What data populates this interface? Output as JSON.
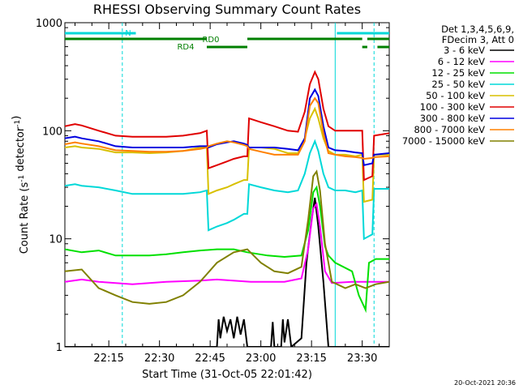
{
  "chart_data": {
    "type": "line",
    "title": "RHESSI Observing Summary Count Rates",
    "xlabel": "Start Time (31-Oct-05 22:01:42)",
    "ylabel_main": "Count Rate (s",
    "ylabel_sup1": "-1",
    "ylabel_mid": " detector",
    "ylabel_sup2": "-1",
    "ylabel_end": ")",
    "yscale": "log",
    "ylim": [
      1,
      1000
    ],
    "xlim_minutes": [
      0,
      96
    ],
    "y_ticks": [
      {
        "value": 1,
        "label": "1"
      },
      {
        "value": 10,
        "label": "10"
      },
      {
        "value": 100,
        "label": "100"
      },
      {
        "value": 1000,
        "label": "1000"
      }
    ],
    "x_ticks": [
      {
        "minute": 13,
        "label": "22:15"
      },
      {
        "minute": 28,
        "label": "22:30"
      },
      {
        "minute": 43,
        "label": "22:45"
      },
      {
        "minute": 58,
        "label": "23:00"
      },
      {
        "minute": 73,
        "label": "23:15"
      },
      {
        "minute": 88,
        "label": "23:30"
      }
    ],
    "legend_header": [
      "Det 1,3,4,5,6,9,",
      "FDecim 3, Att 0"
    ],
    "status_bars": [
      {
        "label": "N",
        "color": "#00d8d8",
        "segments": [
          [
            0,
            21
          ],
          [
            80.5,
            96
          ]
        ]
      },
      {
        "label": "RD0",
        "color": "#007f00",
        "segments": [
          [
            0,
            42
          ],
          [
            54,
            88
          ],
          [
            89.5,
            96
          ]
        ]
      },
      {
        "label": "RD4",
        "color": "#007f00",
        "segments": [
          [
            42,
            54
          ],
          [
            88,
            89.5
          ],
          [
            92.5,
            96
          ]
        ]
      }
    ],
    "night_markers_minutes": [
      17,
      91.5
    ],
    "saa_edge_minutes": [
      80
    ],
    "series": [
      {
        "name": "3 - 6 keV",
        "color": "#000000",
        "points": [
          [
            0,
            1
          ],
          [
            45,
            1
          ],
          [
            45.5,
            1.8
          ],
          [
            46,
            1.2
          ],
          [
            47,
            1.9
          ],
          [
            48,
            1.4
          ],
          [
            49,
            1.8
          ],
          [
            50,
            1.2
          ],
          [
            51,
            1.9
          ],
          [
            52,
            1.3
          ],
          [
            53,
            1.8
          ],
          [
            54,
            1
          ],
          [
            61,
            1
          ],
          [
            61.5,
            1.7
          ],
          [
            62,
            1
          ],
          [
            64,
            1
          ],
          [
            64.5,
            1.8
          ],
          [
            65,
            1.1
          ],
          [
            66,
            1.8
          ],
          [
            67,
            1
          ],
          [
            70,
            1.2
          ],
          [
            71.5,
            6
          ],
          [
            73,
            15
          ],
          [
            74,
            24
          ],
          [
            75,
            13
          ],
          [
            76.5,
            4
          ],
          [
            78,
            1
          ],
          [
            96,
            1
          ]
        ]
      },
      {
        "name": "6 - 12 keV",
        "color": "#ff00ff",
        "points": [
          [
            0,
            4
          ],
          [
            5,
            4.2
          ],
          [
            10,
            4
          ],
          [
            20,
            3.8
          ],
          [
            30,
            4
          ],
          [
            40,
            4.1
          ],
          [
            45,
            4.2
          ],
          [
            55,
            4
          ],
          [
            65,
            4
          ],
          [
            70,
            4.3
          ],
          [
            72,
            8
          ],
          [
            73.5,
            19
          ],
          [
            74.5,
            21
          ],
          [
            75.5,
            13
          ],
          [
            77,
            5
          ],
          [
            79,
            3.9
          ],
          [
            85,
            4
          ],
          [
            90,
            4
          ],
          [
            96,
            4
          ]
        ]
      },
      {
        "name": "12 - 25 keV",
        "color": "#00e000",
        "points": [
          [
            0,
            8
          ],
          [
            5,
            7.5
          ],
          [
            10,
            7.8
          ],
          [
            15,
            7
          ],
          [
            20,
            7
          ],
          [
            25,
            7
          ],
          [
            30,
            7.2
          ],
          [
            35,
            7.5
          ],
          [
            40,
            7.8
          ],
          [
            45,
            8
          ],
          [
            50,
            8
          ],
          [
            54,
            7.5
          ],
          [
            60,
            7
          ],
          [
            65,
            6.8
          ],
          [
            70,
            7
          ],
          [
            72,
            12
          ],
          [
            73.5,
            27
          ],
          [
            74.5,
            30
          ],
          [
            75.5,
            20
          ],
          [
            77,
            8.5
          ],
          [
            78,
            7
          ],
          [
            80,
            6
          ],
          [
            85,
            5
          ],
          [
            87,
            3
          ],
          [
            89,
            2.2
          ],
          [
            90,
            6
          ],
          [
            92,
            6.5
          ],
          [
            96,
            6.5
          ]
        ]
      },
      {
        "name": "25 - 50 keV",
        "color": "#00d8d8",
        "points": [
          [
            0,
            31
          ],
          [
            3,
            32
          ],
          [
            5,
            31
          ],
          [
            10,
            30
          ],
          [
            15,
            28
          ],
          [
            20,
            26
          ],
          [
            25,
            26
          ],
          [
            30,
            26
          ],
          [
            35,
            26
          ],
          [
            40,
            27
          ],
          [
            42,
            28
          ],
          [
            42.5,
            12
          ],
          [
            45,
            13
          ],
          [
            48,
            14
          ],
          [
            50,
            15
          ],
          [
            53,
            17
          ],
          [
            54,
            17
          ],
          [
            54.5,
            32
          ],
          [
            58,
            30
          ],
          [
            62,
            28
          ],
          [
            66,
            27
          ],
          [
            69,
            28
          ],
          [
            71,
            40
          ],
          [
            72.5,
            62
          ],
          [
            74,
            80
          ],
          [
            75,
            65
          ],
          [
            76.5,
            40
          ],
          [
            78,
            30
          ],
          [
            80,
            28
          ],
          [
            83,
            28
          ],
          [
            86,
            27
          ],
          [
            88,
            28
          ],
          [
            88.5,
            10
          ],
          [
            91,
            11
          ],
          [
            91.5,
            29
          ],
          [
            96,
            29
          ]
        ]
      },
      {
        "name": "50 - 100 keV",
        "color": "#d8c000",
        "points": [
          [
            0,
            70
          ],
          [
            3,
            72
          ],
          [
            5,
            70
          ],
          [
            10,
            68
          ],
          [
            15,
            63
          ],
          [
            20,
            63
          ],
          [
            25,
            62
          ],
          [
            30,
            63
          ],
          [
            35,
            65
          ],
          [
            40,
            70
          ],
          [
            42,
            72
          ],
          [
            42.5,
            26
          ],
          [
            45,
            28
          ],
          [
            48,
            30
          ],
          [
            50,
            32
          ],
          [
            53,
            35
          ],
          [
            54,
            35
          ],
          [
            54.5,
            70
          ],
          [
            58,
            70
          ],
          [
            62,
            68
          ],
          [
            66,
            62
          ],
          [
            69,
            62
          ],
          [
            71,
            85
          ],
          [
            72.5,
            130
          ],
          [
            74,
            160
          ],
          [
            75,
            130
          ],
          [
            76.5,
            85
          ],
          [
            78,
            65
          ],
          [
            80,
            60
          ],
          [
            83,
            60
          ],
          [
            86,
            58
          ],
          [
            88,
            60
          ],
          [
            88.5,
            22
          ],
          [
            91,
            23
          ],
          [
            91.5,
            60
          ],
          [
            96,
            60
          ]
        ]
      },
      {
        "name": "100 - 300 keV",
        "color": "#e00000",
        "points": [
          [
            0,
            110
          ],
          [
            3,
            115
          ],
          [
            5,
            112
          ],
          [
            10,
            100
          ],
          [
            15,
            90
          ],
          [
            20,
            88
          ],
          [
            25,
            88
          ],
          [
            30,
            88
          ],
          [
            35,
            90
          ],
          [
            40,
            95
          ],
          [
            42,
            100
          ],
          [
            42.5,
            45
          ],
          [
            45,
            48
          ],
          [
            48,
            52
          ],
          [
            50,
            55
          ],
          [
            53,
            58
          ],
          [
            54,
            58
          ],
          [
            54.5,
            130
          ],
          [
            58,
            120
          ],
          [
            62,
            110
          ],
          [
            66,
            100
          ],
          [
            69,
            98
          ],
          [
            71,
            150
          ],
          [
            72.5,
            270
          ],
          [
            74,
            350
          ],
          [
            75,
            300
          ],
          [
            76.5,
            160
          ],
          [
            78,
            110
          ],
          [
            80,
            100
          ],
          [
            83,
            100
          ],
          [
            86,
            100
          ],
          [
            88,
            100
          ],
          [
            88.5,
            35
          ],
          [
            91,
            38
          ],
          [
            91.5,
            90
          ],
          [
            96,
            95
          ]
        ]
      },
      {
        "name": "300 - 800 keV",
        "color": "#0000e0",
        "points": [
          [
            0,
            85
          ],
          [
            3,
            88
          ],
          [
            5,
            85
          ],
          [
            10,
            80
          ],
          [
            15,
            72
          ],
          [
            20,
            70
          ],
          [
            25,
            70
          ],
          [
            30,
            70
          ],
          [
            35,
            70
          ],
          [
            40,
            72
          ],
          [
            42,
            72
          ],
          [
            42.5,
            70
          ],
          [
            45,
            75
          ],
          [
            48,
            78
          ],
          [
            50,
            80
          ],
          [
            53,
            76
          ],
          [
            54,
            74
          ],
          [
            54.5,
            70
          ],
          [
            58,
            70
          ],
          [
            62,
            70
          ],
          [
            66,
            68
          ],
          [
            69,
            66
          ],
          [
            71,
            85
          ],
          [
            72.5,
            200
          ],
          [
            74,
            240
          ],
          [
            75,
            210
          ],
          [
            76.5,
            110
          ],
          [
            78,
            70
          ],
          [
            80,
            66
          ],
          [
            83,
            65
          ],
          [
            86,
            63
          ],
          [
            88,
            62
          ],
          [
            88.5,
            48
          ],
          [
            91,
            50
          ],
          [
            91.5,
            60
          ],
          [
            96,
            62
          ]
        ]
      },
      {
        "name": "800 - 7000 keV",
        "color": "#ff8000",
        "points": [
          [
            0,
            75
          ],
          [
            3,
            78
          ],
          [
            5,
            76
          ],
          [
            10,
            72
          ],
          [
            15,
            66
          ],
          [
            20,
            65
          ],
          [
            25,
            64
          ],
          [
            30,
            64
          ],
          [
            35,
            65
          ],
          [
            40,
            68
          ],
          [
            42,
            70
          ],
          [
            42.5,
            72
          ],
          [
            45,
            76
          ],
          [
            48,
            80
          ],
          [
            50,
            78
          ],
          [
            53,
            74
          ],
          [
            54,
            72
          ],
          [
            54.5,
            68
          ],
          [
            58,
            64
          ],
          [
            62,
            60
          ],
          [
            66,
            60
          ],
          [
            69,
            60
          ],
          [
            71,
            80
          ],
          [
            72.5,
            170
          ],
          [
            74,
            200
          ],
          [
            75,
            180
          ],
          [
            76.5,
            95
          ],
          [
            78,
            62
          ],
          [
            80,
            60
          ],
          [
            83,
            58
          ],
          [
            86,
            57
          ],
          [
            88,
            56
          ],
          [
            88.5,
            55
          ],
          [
            91,
            56
          ],
          [
            91.5,
            57
          ],
          [
            96,
            58
          ]
        ]
      },
      {
        "name": "7000 - 15000 keV",
        "color": "#808000",
        "points": [
          [
            0,
            5
          ],
          [
            5,
            5.2
          ],
          [
            10,
            3.5
          ],
          [
            15,
            3
          ],
          [
            20,
            2.6
          ],
          [
            25,
            2.5
          ],
          [
            30,
            2.6
          ],
          [
            35,
            3
          ],
          [
            40,
            4
          ],
          [
            45,
            6
          ],
          [
            50,
            7.5
          ],
          [
            54,
            8
          ],
          [
            58,
            6
          ],
          [
            62,
            5
          ],
          [
            66,
            4.8
          ],
          [
            70,
            5.5
          ],
          [
            72,
            15
          ],
          [
            73.5,
            38
          ],
          [
            74.5,
            42
          ],
          [
            75.5,
            28
          ],
          [
            77,
            9
          ],
          [
            79,
            4
          ],
          [
            83,
            3.5
          ],
          [
            86,
            3.8
          ],
          [
            89,
            3.5
          ],
          [
            92,
            3.8
          ],
          [
            96,
            4
          ]
        ]
      }
    ],
    "timestamp": "20-Oct-2021 20:36"
  }
}
